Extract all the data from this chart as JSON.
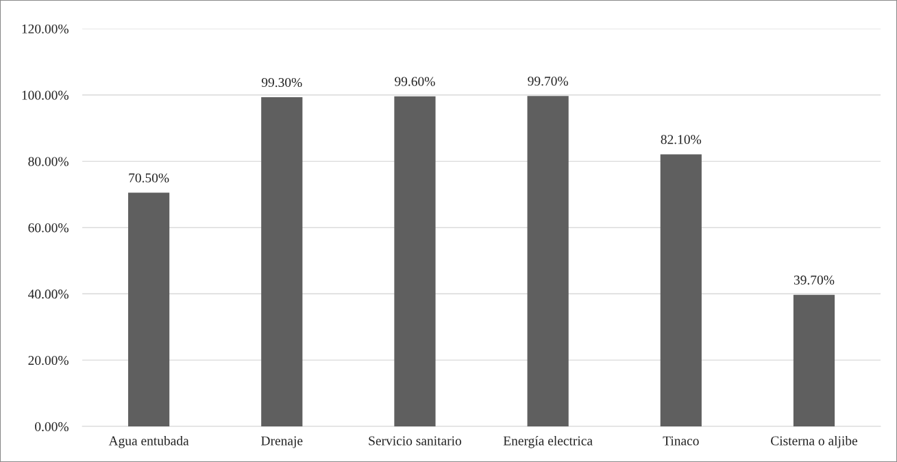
{
  "chart_data": {
    "type": "bar",
    "categories": [
      "Agua entubada",
      "Drenaje",
      "Servicio sanitario",
      "Energía electrica",
      "Tinaco",
      "Cisterna o aljibe"
    ],
    "values": [
      70.5,
      99.3,
      99.6,
      99.7,
      82.1,
      39.7
    ],
    "value_labels": [
      "70.50%",
      "99.30%",
      "99.60%",
      "99.70%",
      "82.10%",
      "39.70%"
    ],
    "color": "#5f5f5f",
    "ylim": [
      0,
      120
    ],
    "yticks": [
      {
        "value": 0,
        "label": "0.00%"
      },
      {
        "value": 20,
        "label": "20.00%"
      },
      {
        "value": 40,
        "label": "40.00%"
      },
      {
        "value": 60,
        "label": "60.00%"
      },
      {
        "value": 80,
        "label": "80.00%"
      },
      {
        "value": 100,
        "label": "100.00%"
      },
      {
        "value": 120,
        "label": "120.00%"
      }
    ],
    "grid": "y",
    "legend": false
  }
}
